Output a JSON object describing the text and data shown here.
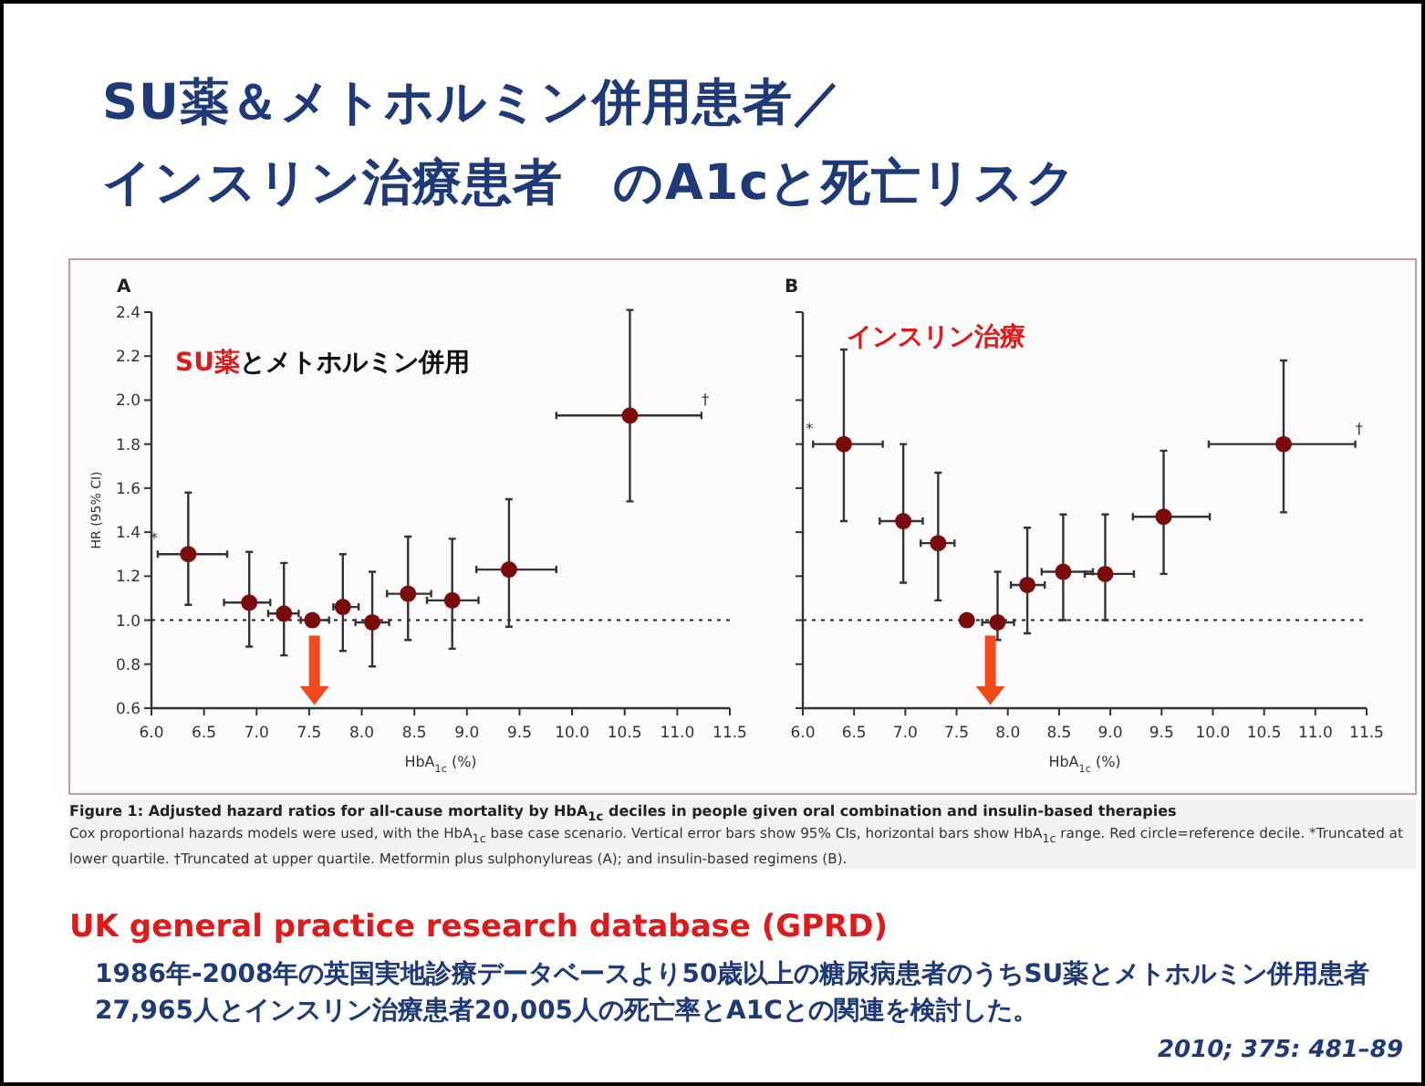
{
  "chart_data": [
    {
      "type": "scatter",
      "title": "A",
      "xlabel": "HbA$_{1c}$ (%)",
      "ylabel": "HR (95% CI)",
      "color": "#7a0c0c",
      "marker": "circle",
      "x": [
        6.35,
        6.93,
        7.26,
        7.53,
        7.82,
        8.1,
        8.44,
        8.86,
        9.4,
        10.55
      ],
      "values": [
        1.3,
        1.08,
        1.03,
        1.0,
        1.06,
        0.99,
        1.12,
        1.09,
        1.23,
        1.93
      ],
      "errors": [
        [
          1.07,
          1.58
        ],
        [
          0.88,
          1.31
        ],
        [
          0.84,
          1.26
        ],
        null,
        [
          0.86,
          1.3
        ],
        [
          0.79,
          1.22
        ],
        [
          0.91,
          1.38
        ],
        [
          0.87,
          1.37
        ],
        [
          0.97,
          1.55
        ],
        [
          1.54,
          2.41
        ]
      ],
      "xerrors": [
        [
          6.06,
          6.72
        ],
        [
          6.69,
          7.13
        ],
        [
          7.11,
          7.4
        ],
        [
          7.42,
          7.69
        ],
        [
          7.73,
          7.97
        ],
        [
          7.94,
          8.26
        ],
        [
          8.24,
          8.66
        ],
        [
          8.62,
          9.11
        ],
        [
          9.09,
          9.85
        ],
        [
          9.85,
          11.23
        ]
      ],
      "xlim": [
        6.0,
        11.5
      ],
      "ylim": [
        0.6,
        2.4
      ],
      "xticks": [
        {
          "value": 6.0,
          "label": "6.0"
        },
        {
          "value": 6.5,
          "label": "6.5"
        },
        {
          "value": 7.0,
          "label": "7.0"
        },
        {
          "value": 7.5,
          "label": "7.5"
        },
        {
          "value": 8.0,
          "label": "8.0"
        },
        {
          "value": 8.5,
          "label": "8.5"
        },
        {
          "value": 9.0,
          "label": "9.0"
        },
        {
          "value": 9.5,
          "label": "9.5"
        },
        {
          "value": 10.0,
          "label": "10.0"
        },
        {
          "value": 10.5,
          "label": "10.5"
        },
        {
          "value": 11.0,
          "label": "11.0"
        },
        {
          "value": 11.5,
          "label": "11.5"
        }
      ],
      "yticks": [
        {
          "value": 0.6,
          "label": "0.6"
        },
        {
          "value": 0.8,
          "label": "0.8"
        },
        {
          "value": 1.0,
          "label": "1.0"
        },
        {
          "value": 1.2,
          "label": "1.2"
        },
        {
          "value": 1.4,
          "label": "1.4"
        },
        {
          "value": 1.6,
          "label": "1.6"
        },
        {
          "value": 1.8,
          "label": "1.8"
        },
        {
          "value": 2.0,
          "label": "2.0"
        },
        {
          "value": 2.2,
          "label": "2.2"
        },
        {
          "value": 2.4,
          "label": "2.4"
        }
      ],
      "ref_lines": [
        {
          "axis": "y",
          "value": 1.0,
          "line_style": "dotted"
        }
      ],
      "annotations": [
        "SU薬＆メトホルミン併用患者／",
        "インスリン治療患者　のA1cと死亡リスク",
        "SU薬",
        "とメトホルミン併用",
        "*",
        "†"
      ]
    },
    {
      "type": "scatter",
      "title": "B",
      "xlabel": "HbA$_{1c}$ (%)",
      "color": "#7a0c0c",
      "marker": "circle",
      "tick_labels": "x",
      "x": [
        6.4,
        6.98,
        7.32,
        7.6,
        7.9,
        8.19,
        8.54,
        8.95,
        9.52,
        10.69
      ],
      "values": [
        1.8,
        1.45,
        1.35,
        1.0,
        0.99,
        1.16,
        1.22,
        1.21,
        1.47,
        1.8
      ],
      "errors": [
        [
          1.45,
          2.23
        ],
        [
          1.17,
          1.8
        ],
        [
          1.09,
          1.67
        ],
        null,
        [
          0.91,
          1.22
        ],
        [
          0.94,
          1.42
        ],
        [
          1.0,
          1.48
        ],
        [
          1.0,
          1.48
        ],
        [
          1.21,
          1.77
        ],
        [
          1.49,
          2.18
        ]
      ],
      "xerrors": [
        [
          6.1,
          6.78
        ],
        [
          6.75,
          7.17
        ],
        [
          7.15,
          7.48
        ],
        null,
        [
          7.75,
          8.06
        ],
        [
          8.03,
          8.36
        ],
        [
          8.33,
          8.83
        ],
        [
          8.75,
          9.23
        ],
        [
          9.22,
          9.97
        ],
        [
          9.96,
          11.39
        ]
      ],
      "xlim": [
        6.0,
        11.5
      ],
      "ylim": [
        0.6,
        2.4
      ],
      "xticks": [
        {
          "value": 6.0,
          "label": "6.0"
        },
        {
          "value": 6.5,
          "label": "6.5"
        },
        {
          "value": 7.0,
          "label": "7.0"
        },
        {
          "value": 7.5,
          "label": "7.5"
        },
        {
          "value": 8.0,
          "label": "8.0"
        },
        {
          "value": 8.5,
          "label": "8.5"
        },
        {
          "value": 9.0,
          "label": "9.0"
        },
        {
          "value": 9.5,
          "label": "9.5"
        },
        {
          "value": 10.0,
          "label": "10.0"
        },
        {
          "value": 10.5,
          "label": "10.5"
        },
        {
          "value": 11.0,
          "label": "11.0"
        },
        {
          "value": 11.5,
          "label": "11.5"
        }
      ],
      "yticks": [
        0.6,
        0.8,
        1.0,
        1.2,
        1.4,
        1.6,
        1.8,
        2.0,
        2.2,
        2.4
      ],
      "ref_lines": [
        {
          "axis": "y",
          "value": 1.0,
          "line_style": "dotted"
        }
      ],
      "annotations": [
        "インスリン治療",
        "*",
        "†",
        "Figure 1: Adjusted hazard ratios for all-cause mortality by HbA$_{1c}$ deciles in people given oral combination and insulin-based therapies",
        "Cox proportional hazards models were used, with the HbA$_{1c}$ base case scenario. Vertical error bars show 95% CIs, horizontal bars show HbA$_{1c}$ range. Red circle=reference decile. *Truncated at lower quartile. †Truncated at upper quartile. Metformin plus sulphonylureas (A); and insulin-based regimens (B).",
        "UK general practice research database (GPRD)",
        "1986年-2008年の英国実地診療データベースより50歳以上の糖尿病患者のうちSU薬とメトホルミン併用患者27,965人とインスリン治療患者20,005人の死亡率とA1Cとの関連を検討した。",
        "2010; 375: 481–89"
      ]
    }
  ]
}
